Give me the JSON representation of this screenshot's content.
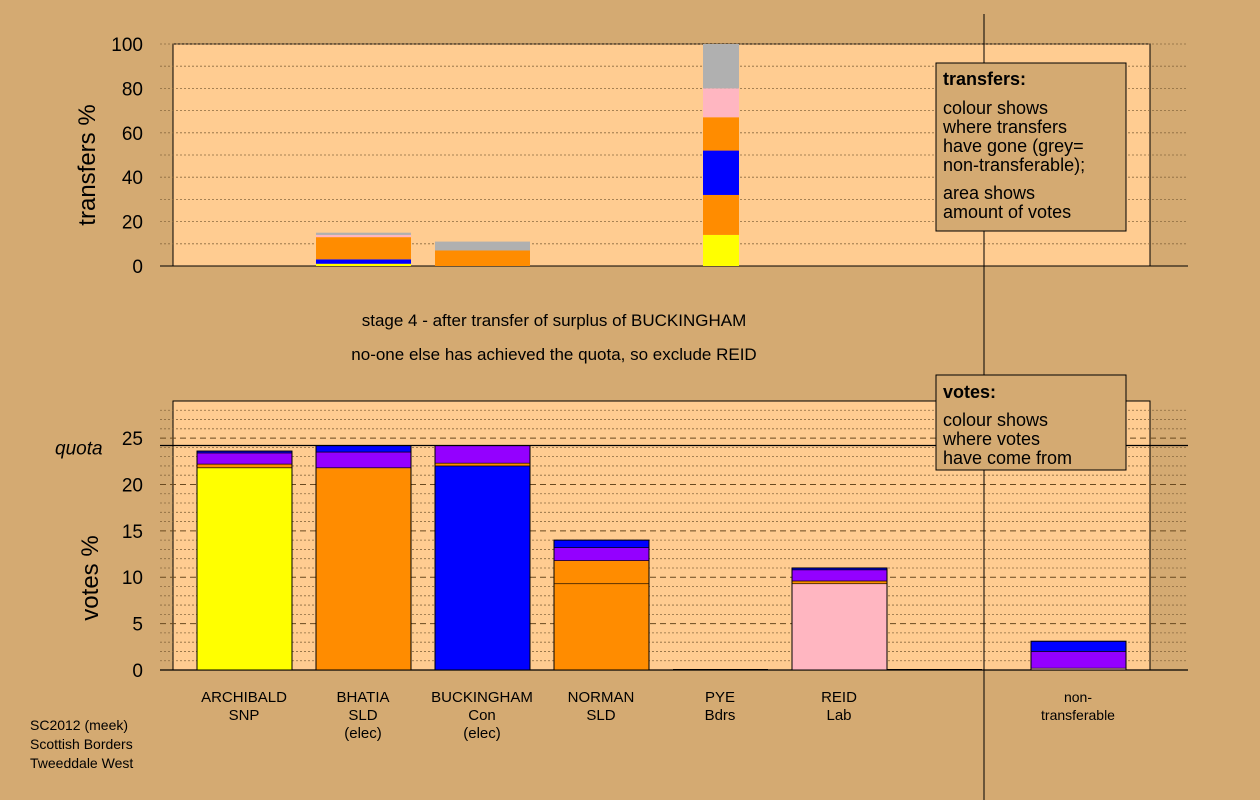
{
  "chart_data": [
    {
      "type": "bar",
      "stacked": true,
      "ylabel": "transfers %",
      "ylim": [
        0,
        100
      ],
      "yticks": [
        "0",
        "20",
        "40",
        "60",
        "80",
        "100"
      ],
      "grid": true,
      "categories": [
        "ARCHIBALD",
        "BHATIA",
        "BUCKINGHAM",
        "NORMAN",
        "PYE",
        "REID",
        "non-transferable"
      ],
      "segments": [
        {
          "category": "BHATIA",
          "color": "#ffff00",
          "from": 0,
          "to": 1
        },
        {
          "category": "BHATIA",
          "color": "#0000ff",
          "from": 1,
          "to": 3
        },
        {
          "category": "BHATIA",
          "color": "#ff8c00",
          "from": 3,
          "to": 13
        },
        {
          "category": "BHATIA",
          "color": "#ffb6c1",
          "from": 13,
          "to": 14
        },
        {
          "category": "BHATIA",
          "color": "#b0b0b0",
          "from": 14,
          "to": 15
        },
        {
          "category": "BUCKINGHAM",
          "color": "#ff8c00",
          "from": 0,
          "to": 7
        },
        {
          "category": "BUCKINGHAM",
          "color": "#b0b0b0",
          "from": 7,
          "to": 11
        },
        {
          "category": "PYE",
          "color": "#ffff00",
          "from": 0,
          "to": 14
        },
        {
          "category": "PYE",
          "color": "#ff8c00",
          "from": 14,
          "to": 32
        },
        {
          "category": "PYE",
          "color": "#0000ff",
          "from": 32,
          "to": 52
        },
        {
          "category": "PYE",
          "color": "#ff8c00",
          "from": 52,
          "to": 67
        },
        {
          "category": "PYE",
          "color": "#ffb6c1",
          "from": 67,
          "to": 80
        },
        {
          "category": "PYE",
          "color": "#b0b0b0",
          "from": 80,
          "to": 100
        }
      ],
      "legend": {
        "title": "transfers:",
        "lines1": [
          "colour shows",
          "where transfers",
          "have gone (grey=",
          "non-transferable);"
        ],
        "lines2": [
          "area shows",
          "amount of votes"
        ]
      }
    },
    {
      "type": "bar",
      "stacked": true,
      "ylabel": "votes %",
      "ylim": [
        0,
        29
      ],
      "yticks": [
        "0",
        "5",
        "10",
        "15",
        "20",
        "25"
      ],
      "quota": 24.2,
      "quota_label": "quota",
      "grid": true,
      "candidates": [
        {
          "name": "ARCHIBALD",
          "party": "SNP",
          "status": ""
        },
        {
          "name": "BHATIA",
          "party": "SLD",
          "status": "(elec)"
        },
        {
          "name": "BUCKINGHAM",
          "party": "Con",
          "status": "(elec)"
        },
        {
          "name": "NORMAN",
          "party": "SLD",
          "status": ""
        },
        {
          "name": "PYE",
          "party": "Bdrs",
          "status": ""
        },
        {
          "name": "REID",
          "party": "Lab",
          "status": ""
        }
      ],
      "nontransferable_label": [
        "non-",
        "transferable"
      ],
      "segments": [
        {
          "category": "ARCHIBALD",
          "color": "#ffff00",
          "from": 0,
          "to": 21.8
        },
        {
          "category": "ARCHIBALD",
          "color": "#ff8c00",
          "from": 21.8,
          "to": 22.2
        },
        {
          "category": "ARCHIBALD",
          "color": "#9400ff",
          "from": 22.2,
          "to": 23.4
        },
        {
          "category": "ARCHIBALD",
          "color": "#0000ff",
          "from": 23.4,
          "to": 23.6
        },
        {
          "category": "BHATIA",
          "color": "#ff8c00",
          "from": 0,
          "to": 21.8
        },
        {
          "category": "BHATIA",
          "color": "#9400ff",
          "from": 21.8,
          "to": 23.5
        },
        {
          "category": "BHATIA",
          "color": "#0000ff",
          "from": 23.5,
          "to": 24.2
        },
        {
          "category": "BUCKINGHAM",
          "color": "#0000ff",
          "from": 0,
          "to": 22.0
        },
        {
          "category": "BUCKINGHAM",
          "color": "#ff8c00",
          "from": 22.0,
          "to": 22.3
        },
        {
          "category": "BUCKINGHAM",
          "color": "#9400ff",
          "from": 22.3,
          "to": 24.2
        },
        {
          "category": "NORMAN",
          "color": "#ff8c00",
          "from": 0,
          "to": 9.3
        },
        {
          "category": "NORMAN",
          "color": "#ff8c00",
          "from": 9.3,
          "to": 11.8
        },
        {
          "category": "NORMAN",
          "color": "#9400ff",
          "from": 11.8,
          "to": 13.2
        },
        {
          "category": "NORMAN",
          "color": "#0000ff",
          "from": 13.2,
          "to": 14.0
        },
        {
          "category": "REID",
          "color": "#ffb6c1",
          "from": 0,
          "to": 9.3
        },
        {
          "category": "REID",
          "color": "#ff8c00",
          "from": 9.3,
          "to": 9.6
        },
        {
          "category": "REID",
          "color": "#9400ff",
          "from": 9.6,
          "to": 10.8
        },
        {
          "category": "REID",
          "color": "#0000ff",
          "from": 10.8,
          "to": 11.0
        },
        {
          "category": "non-transferable",
          "color": "#ffb6c1",
          "from": 0,
          "to": 0.2
        },
        {
          "category": "non-transferable",
          "color": "#9400ff",
          "from": 0.2,
          "to": 2.0
        },
        {
          "category": "non-transferable",
          "color": "#0000ff",
          "from": 2.0,
          "to": 3.1
        }
      ],
      "legend": {
        "title": "votes:",
        "lines1": [
          "colour shows",
          "where votes",
          "have come from"
        ]
      }
    }
  ],
  "stage_text": {
    "line1": "stage 4 - after transfer of surplus of BUCKINGHAM",
    "line2": "no-one else has achieved the quota, so exclude REID"
  },
  "footer": {
    "lines": [
      "SC2012 (meek)",
      "Scottish Borders",
      "Tweeddale West"
    ]
  },
  "colors": {
    "background": "#d4aa72",
    "plot_bg": "#ffcc91",
    "legend_bg": "#d4aa72"
  }
}
